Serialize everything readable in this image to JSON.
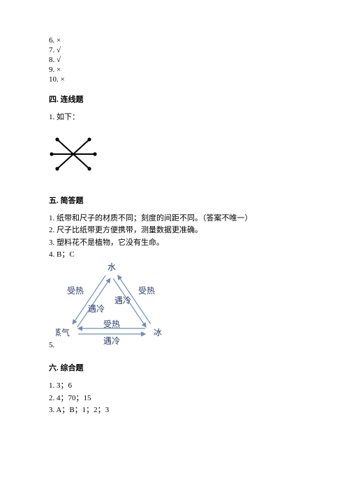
{
  "tf_answers": [
    {
      "num": "6.",
      "mark": "×"
    },
    {
      "num": "7.",
      "mark": "√"
    },
    {
      "num": "8.",
      "mark": "√"
    },
    {
      "num": "9.",
      "mark": "×"
    },
    {
      "num": "10.",
      "mark": "×"
    }
  ],
  "section4": {
    "title": "四. 连线题",
    "item1_label": "1. 如下：",
    "star": {
      "stroke": "#000000",
      "stroke_width": 2,
      "dot_radius": 2.6,
      "points": [
        {
          "x": 12,
          "y": 14
        },
        {
          "x": 58,
          "y": 14
        },
        {
          "x": 66,
          "y": 35
        },
        {
          "x": 58,
          "y": 56
        },
        {
          "x": 12,
          "y": 56
        },
        {
          "x": 4,
          "y": 35
        }
      ],
      "lines": [
        {
          "from": 0,
          "to": 3
        },
        {
          "from": 1,
          "to": 4
        },
        {
          "from": 2,
          "to": 5
        }
      ]
    }
  },
  "section5": {
    "title": "五. 简答题",
    "lines": [
      "1. 纸带和尺子的材质不同；刻度的间距不同。（答案不唯一）",
      "2. 尺子比纸带更方便携带，测量数据更准确。",
      "3. 塑料花不是植物，它没有生命。",
      "4. B；C"
    ],
    "item5_num": "5.",
    "triangle": {
      "bg": "#ffffff",
      "arrow_color": "#6f8bb8",
      "text_color": "#2a3b6b",
      "nodes": {
        "water": "水",
        "ice": "冰",
        "vapor": "水蒸气"
      },
      "edge_labels": {
        "heat": "受热",
        "cool": "遇冷"
      }
    }
  },
  "section6": {
    "title": "六. 综合题",
    "lines": [
      "1. 3；6",
      "2. 4；70；15",
      "3. A；B；1；2；3"
    ]
  }
}
